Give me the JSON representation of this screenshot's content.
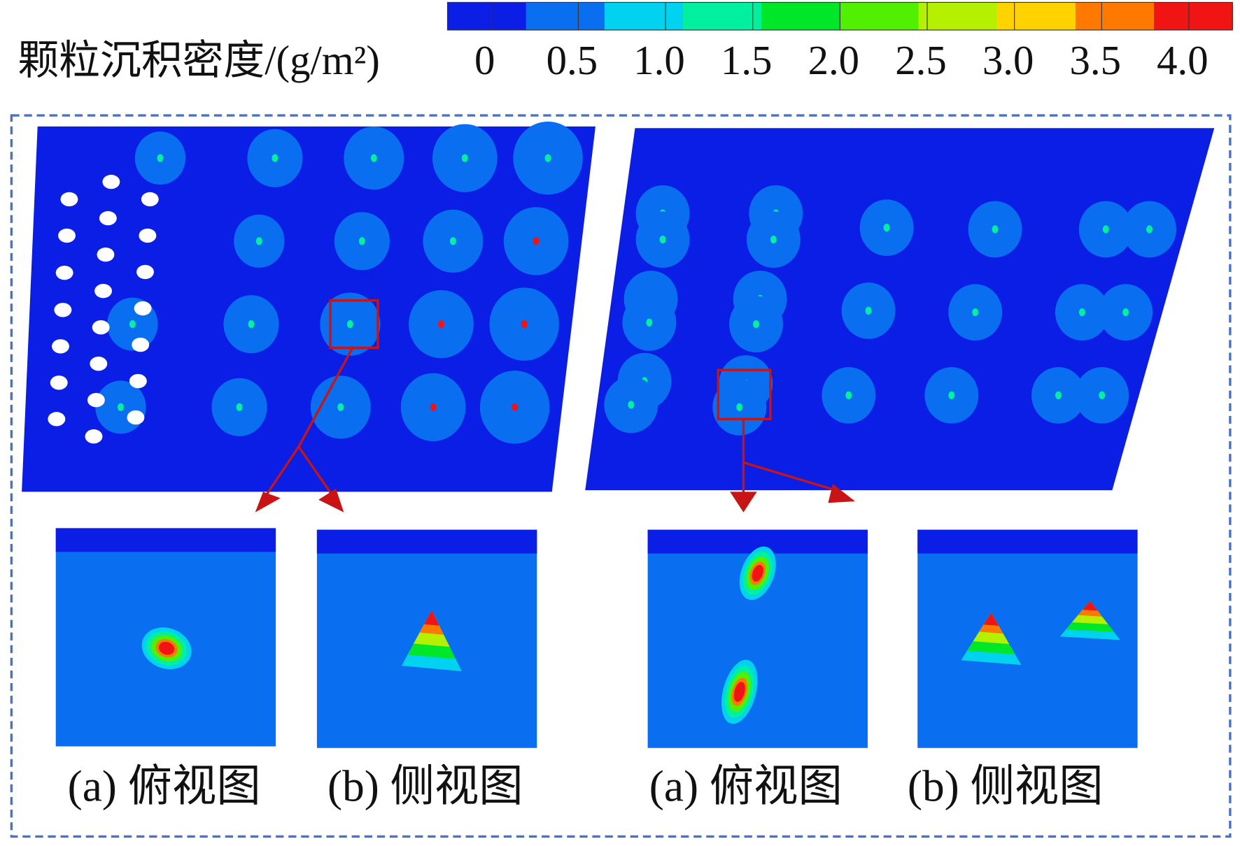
{
  "colorbar": {
    "label": "颗粒沉积密度/(g/m²)",
    "xlim": [
      -0.25,
      4.25
    ],
    "ticks": [
      0,
      0.5,
      {
        "value": 1,
        "label": "1.0"
      },
      1.5,
      {
        "value": 2,
        "label": "2.0"
      },
      2.5,
      {
        "value": 3,
        "label": "3.0"
      },
      3.5,
      {
        "value": 4,
        "label": "4.0"
      }
    ],
    "colors": [
      "#0a1ee6",
      "#0a6ef0",
      "#00d2f0",
      "#00f0a0",
      "#00e628",
      "#50f000",
      "#b4f000",
      "#ffd200",
      "#ff7800",
      "#f01414"
    ]
  },
  "panels": [
    {
      "captions": [
        "(a) 俯视图",
        "(b) 侧视图"
      ]
    },
    {
      "captions": [
        "(a) 俯视图",
        "(b) 侧视图"
      ]
    }
  ]
}
